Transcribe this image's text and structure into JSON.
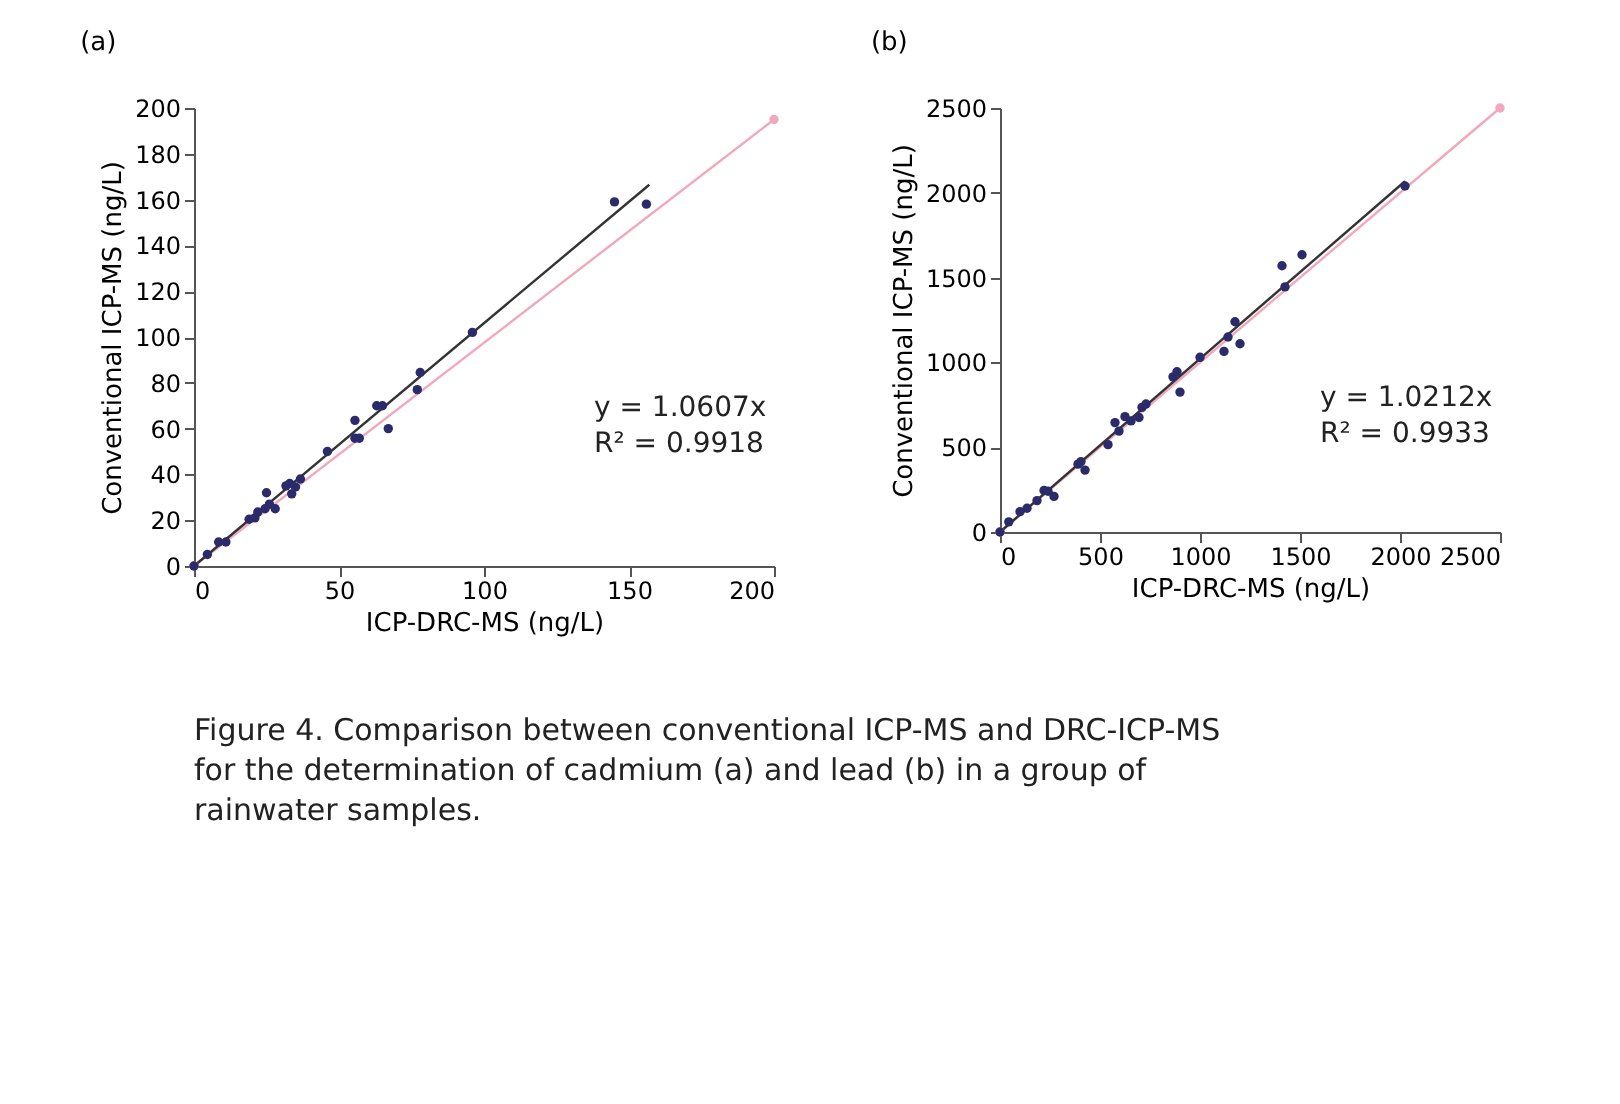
{
  "chart_data": [
    {
      "type": "scatter",
      "title": "(a)",
      "xlabel": "ICP-DRC-MS (ng/L)",
      "ylabel": "Conventional ICP-MS (ng/L)",
      "xlim": [
        0,
        200
      ],
      "xticks": [
        0,
        50,
        100,
        150,
        200
      ],
      "ylim": [
        0,
        200
      ],
      "yticks": [
        0,
        20,
        40,
        60,
        80,
        100,
        120,
        140,
        160,
        180,
        200
      ],
      "grid": false,
      "annotations": [
        "y = 1.0607x",
        "R² = 0.9918",
        "Figure 4. Comparison between conventional ICP-MS and DRC-ICP-MS for the determination of cadmium (a) and lead (b) in a group of rainwater samples."
      ],
      "series": [
        {
          "type": "line",
          "color": "#f2a7bd",
          "marker": "circle",
          "x": [
            0,
            200
          ],
          "values": [
            0,
            195
          ]
        },
        {
          "color": "#2b2a6b",
          "x": [
            0,
            4.6,
            8.5,
            11,
            19,
            21,
            22,
            24.5,
            25,
            26,
            28,
            31.7,
            33,
            33.7,
            35,
            36.7,
            46,
            55.5,
            55.5,
            57,
            63,
            65,
            67,
            77,
            78,
            96,
            145,
            156
          ],
          "values": [
            0,
            5,
            10.5,
            10.5,
            20.4,
            21,
            23.6,
            25,
            32,
            27,
            25,
            35,
            36,
            31.5,
            34.5,
            38,
            50,
            63.6,
            55.8,
            55.8,
            70,
            70,
            60,
            77,
            84.5,
            102,
            159,
            158
          ]
        },
        {
          "type": "line",
          "color": "#333333",
          "marker": "none",
          "x": [
            0,
            157
          ],
          "values": [
            0,
            166.5
          ]
        }
      ]
    },
    {
      "type": "scatter",
      "title": "(b)",
      "xlabel": "ICP-DRC-MS (ng/L)",
      "ylabel": "Conventional ICP-MS (ng/L)",
      "xlim": [
        0,
        2500
      ],
      "xticks": [
        0,
        500,
        1000,
        1500,
        2000,
        2500
      ],
      "ylim": [
        0,
        2500
      ],
      "yticks": [
        0,
        500,
        1000,
        1500,
        2000,
        2500
      ],
      "grid": false,
      "annotations": [
        "y = 1.0212x",
        "R² = 0.9933"
      ],
      "series": [
        {
          "type": "line",
          "color": "#f2a7bd",
          "marker": "circle",
          "x": [
            0,
            2500
          ],
          "values": [
            0,
            2500
          ]
        },
        {
          "color": "#2b2a6b",
          "x": [
            0,
            44,
            100,
            135,
            185,
            220,
            240,
            270,
            390,
            405,
            425,
            540,
            575,
            595,
            625,
            655,
            695,
            710,
            730,
            865,
            885,
            900,
            1000,
            1120,
            1140,
            1175,
            1200,
            1410,
            1425,
            1510,
            2025
          ],
          "values": [
            0,
            60,
            120,
            140,
            185,
            245,
            240,
            210,
            400,
            415,
            365,
            515,
            645,
            595,
            680,
            655,
            675,
            735,
            755,
            915,
            945,
            825,
            1030,
            1065,
            1150,
            1240,
            1110,
            1570,
            1445,
            1635,
            2040
          ]
        },
        {
          "type": "line",
          "color": "#333333",
          "marker": "none",
          "x": [
            0,
            2025
          ],
          "values": [
            0,
            2068
          ]
        }
      ]
    }
  ]
}
